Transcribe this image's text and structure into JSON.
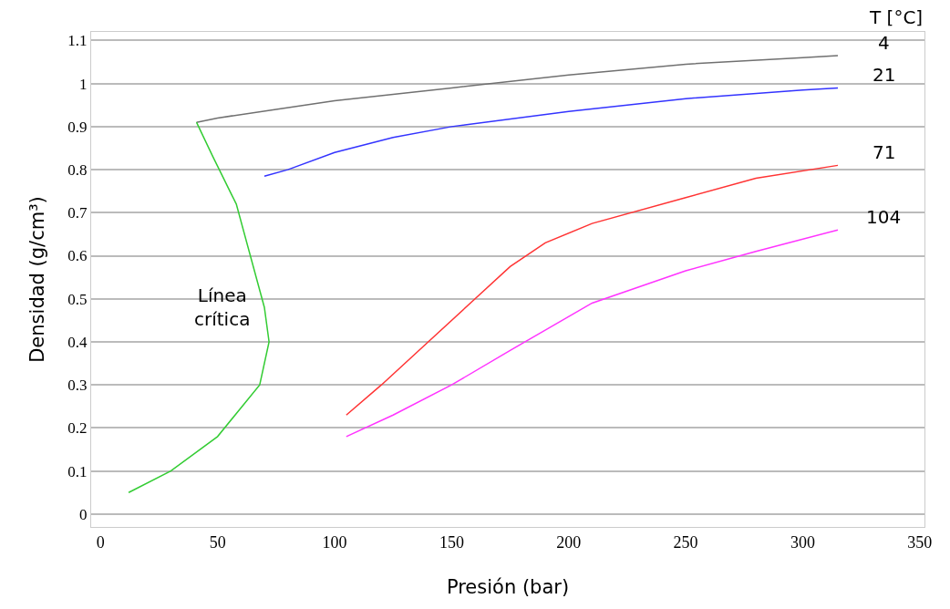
{
  "chart_data": {
    "type": "line",
    "xlabel": "Presión (bar)",
    "ylabel": "Densidad (g/cm³)",
    "legend_title": "T [°C]",
    "xlim": [
      -4,
      352
    ],
    "xticks": [
      0,
      50,
      100,
      150,
      200,
      250,
      300,
      350
    ],
    "ylim": [
      -0.03,
      1.12
    ],
    "yticks": [
      0,
      0.1,
      0.2,
      0.3,
      0.4,
      0.5,
      0.6,
      0.7,
      0.8,
      0.9,
      1,
      1.1
    ],
    "grid": "y",
    "legend": false,
    "marker": "none",
    "line_style": "solid",
    "series": [
      {
        "name": "4",
        "color": "#707070",
        "x": [
          41,
          50,
          75,
          100,
          150,
          200,
          250,
          300,
          315
        ],
        "values": [
          0.91,
          0.92,
          0.94,
          0.96,
          0.99,
          1.02,
          1.045,
          1.06,
          1.065
        ]
      },
      {
        "name": "21",
        "color": "#3333ff",
        "x": [
          70,
          80,
          100,
          125,
          150,
          200,
          250,
          300,
          315
        ],
        "values": [
          0.785,
          0.8,
          0.84,
          0.875,
          0.9,
          0.935,
          0.965,
          0.985,
          0.99
        ]
      },
      {
        "name": "71",
        "color": "#ff3333",
        "x": [
          105,
          120,
          140,
          160,
          175,
          190,
          210,
          250,
          280,
          315
        ],
        "values": [
          0.23,
          0.3,
          0.4,
          0.5,
          0.575,
          0.63,
          0.675,
          0.735,
          0.78,
          0.81
        ]
      },
      {
        "name": "104",
        "color": "#ff33ff",
        "x": [
          105,
          125,
          150,
          175,
          210,
          250,
          280,
          315
        ],
        "values": [
          0.18,
          0.23,
          0.3,
          0.38,
          0.49,
          0.565,
          0.61,
          0.66
        ]
      },
      {
        "name": "Línea crítica",
        "color": "#33cc33",
        "x": [
          12,
          30,
          50,
          68,
          72,
          70,
          58,
          48,
          41
        ],
        "values": [
          0.05,
          0.1,
          0.18,
          0.3,
          0.4,
          0.48,
          0.72,
          0.83,
          0.91
        ]
      }
    ]
  }
}
